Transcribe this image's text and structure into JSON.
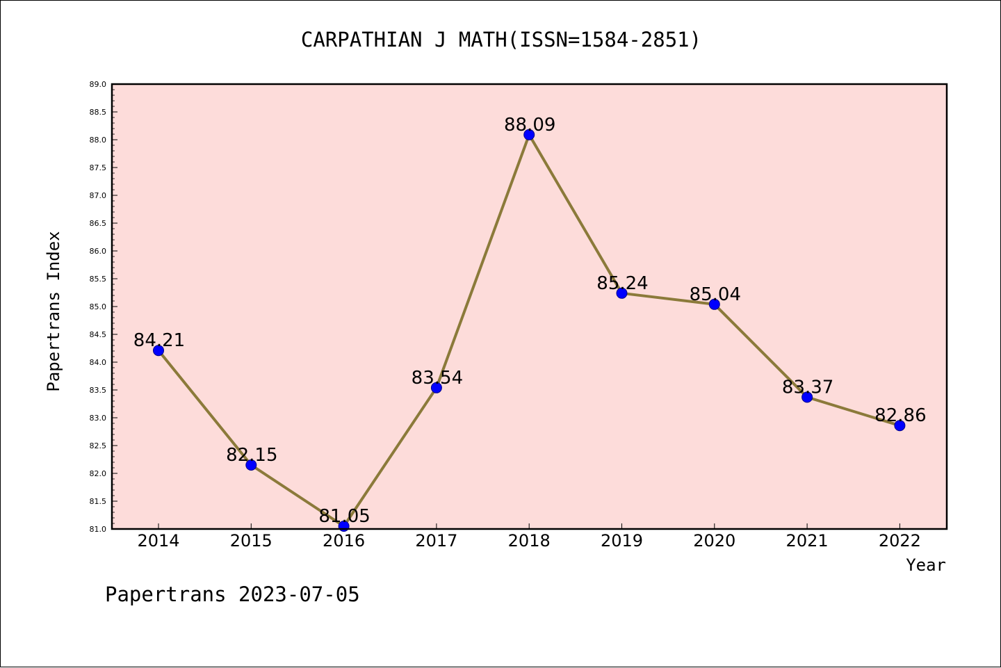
{
  "chart_data": {
    "type": "line",
    "title": "CARPATHIAN J MATH(ISSN=1584-2851)",
    "xlabel": "Year",
    "ylabel": "Papertrans Index",
    "categories": [
      "2014",
      "2015",
      "2016",
      "2017",
      "2018",
      "2019",
      "2020",
      "2021",
      "2022"
    ],
    "series": [
      {
        "values": [
          84.21,
          82.15,
          81.05,
          83.54,
          88.09,
          85.24,
          85.04,
          83.37,
          82.86
        ],
        "labels": [
          "84.21",
          "82.15",
          "81.05",
          "83.54",
          "88.09",
          "85.24",
          "85.04",
          "83.37",
          "82.86"
        ]
      }
    ],
    "ylim": [
      81.0,
      89.0
    ],
    "yticks": [
      "81.0",
      "81.5",
      "82.0",
      "82.5",
      "83.0",
      "83.5",
      "84.0",
      "84.5",
      "85.0",
      "85.5",
      "86.0",
      "86.5",
      "87.0",
      "87.5",
      "88.0",
      "88.5",
      "89.0"
    ],
    "grid": false,
    "colors": {
      "plot_background": "#fddcda",
      "line": "#8b7a3a",
      "marker": "#0000ff",
      "marker_edge": "#00008b",
      "axes": "#000000"
    }
  },
  "footer": "Papertrans 2023-07-05"
}
